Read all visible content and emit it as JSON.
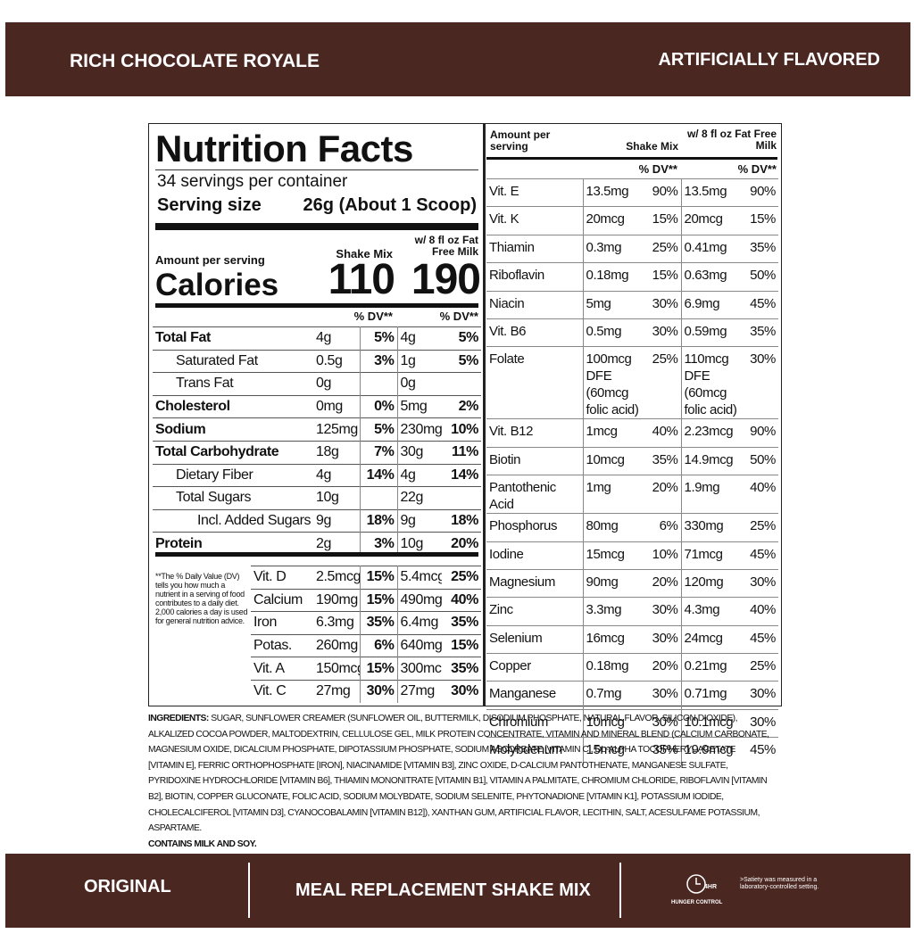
{
  "header": {
    "left": "RICH CHOCOLATE ROYALE",
    "right": "ARTIFICIALLY FLAVORED"
  },
  "facts": {
    "title": "Nutrition Facts",
    "servings": "34 servings per container",
    "serving_size_label": "Serving size",
    "serving_size": "26g (About 1 Scoop)",
    "amount_per_serving": "Amount per serving",
    "calories_label": "Calories",
    "col1": "Shake Mix",
    "col2": "w/ 8 fl oz Fat Free Milk",
    "calories": [
      "110",
      "190"
    ],
    "dv_header": "% DV**",
    "nutrients": [
      [
        "Total Fat",
        "4g",
        "5%",
        "4g",
        "5%"
      ],
      [
        "Saturated Fat",
        "0.5g",
        "3%",
        "1g",
        "5%"
      ],
      [
        "Trans Fat",
        "0g",
        null,
        "0g",
        null
      ],
      [
        "Cholesterol",
        "0mg",
        "0%",
        "5mg",
        "2%"
      ],
      [
        "Sodium",
        "125mg",
        "5%",
        "230mg",
        "10%"
      ],
      [
        "Total Carbohydrate",
        "18g",
        "7%",
        "30g",
        "11%"
      ],
      [
        "Dietary Fiber",
        "4g",
        "14%",
        "4g",
        "14%"
      ],
      [
        "Total Sugars",
        "10g",
        null,
        "22g",
        null
      ],
      [
        "Incl. Added Sugars",
        "9g",
        "18%",
        "9g",
        "18%"
      ],
      [
        "Protein",
        "2g",
        "3%",
        "10g",
        "20%"
      ]
    ],
    "footnote": "**The % Daily Value (DV) tells you how much a nutrient in a serving of food contributes to a daily diet. 2,000 calories a day is used for general nutrition advice.",
    "vitamins": [
      [
        "Vit. D",
        "2.5mcg",
        "15%",
        "5.4mcg",
        "25%"
      ],
      [
        "Calcium",
        "190mg",
        "15%",
        "490mg",
        "40%"
      ],
      [
        "Iron",
        "6.3mg",
        "35%",
        "6.4mg",
        "35%"
      ],
      [
        "Potas.",
        "260mg",
        "6%",
        "640mg",
        "15%"
      ],
      [
        "Vit. A",
        "150mcg",
        "15%",
        "300mcg",
        "35%"
      ],
      [
        "Vit. C",
        "27mg",
        "30%",
        "27mg",
        "30%"
      ]
    ]
  },
  "micros": {
    "amount_per_serving": "Amount per serving",
    "col1": "Shake Mix",
    "col2": "w/ 8 fl oz Fat Free Milk",
    "dv_header": "% DV**",
    "rows": [
      [
        "Vit. E",
        "13.5mg",
        "90%",
        "13.5mg",
        "90%"
      ],
      [
        "Vit. K",
        "20mcg",
        "15%",
        "20mcg",
        "15%"
      ],
      [
        "Thiamin",
        "0.3mg",
        "25%",
        "0.41mg",
        "35%"
      ],
      [
        "Riboflavin",
        "0.18mg",
        "15%",
        "0.63mg",
        "50%"
      ],
      [
        "Niacin",
        "5mg",
        "30%",
        "6.9mg",
        "45%"
      ],
      [
        "Vit. B6",
        "0.5mg",
        "30%",
        "0.59mg",
        "35%"
      ],
      [
        "Folate",
        "100mcg DFE (60mcg folic acid)",
        "25%",
        "110mcg DFE (60mcg folic acid)",
        "30%"
      ],
      [
        "Vit. B12",
        "1mcg",
        "40%",
        "2.23mcg",
        "90%"
      ],
      [
        "Biotin",
        "10mcg",
        "35%",
        "14.9mcg",
        "50%"
      ],
      [
        "Pantothenic Acid",
        "1mg",
        "20%",
        "1.9mg",
        "40%"
      ],
      [
        "Phosphorus",
        "80mg",
        "6%",
        "330mg",
        "25%"
      ],
      [
        "Iodine",
        "15mcg",
        "10%",
        "71mcg",
        "45%"
      ],
      [
        "Magnesium",
        "90mg",
        "20%",
        "120mg",
        "30%"
      ],
      [
        "Zinc",
        "3.3mg",
        "30%",
        "4.3mg",
        "40%"
      ],
      [
        "Selenium",
        "16mcg",
        "30%",
        "24mcg",
        "45%"
      ],
      [
        "Copper",
        "0.18mg",
        "20%",
        "0.21mg",
        "25%"
      ],
      [
        "Manganese",
        "0.7mg",
        "30%",
        "0.71mg",
        "30%"
      ],
      [
        "Chromium",
        "10mcg",
        "30%",
        "10.1mcg",
        "30%"
      ],
      [
        "Molybdenum",
        "15mcg",
        "35%",
        "19.9mcg",
        "45%"
      ]
    ]
  },
  "ingredients": {
    "label": "INGREDIENTS:",
    "text": "SUGAR, SUNFLOWER CREAMER (SUNFLOWER OIL, BUTTERMILK, DISODIUM PHOSPHATE, NATURAL FLAVOR, SILICON DIOXIDE), ALKALIZED COCOA POWDER, MALTODEXTRIN, CELLULOSE GEL, MILK PROTEIN CONCENTRATE, VITAMIN AND MINERAL BLEND (CALCIUM CARBONATE, MAGNESIUM OXIDE, DICALCIUM PHOSPHATE, DIPOTASSIUM PHOSPHATE, SODIUM ASCORBATE [VITAMIN C], DL-ALPHA TOCOPHERYL ACETATE [VITAMIN E], FERRIC ORTHOPHOSPHATE [IRON], NIACINAMIDE [VITAMIN B3], ZINC OXIDE, D-CALCIUM PANTOTHENATE, MANGANESE SULFATE, PYRIDOXINE HYDROCHLORIDE [VITAMIN B6], THIAMIN MONONITRATE [VITAMIN B1], VITAMIN A PALMITATE, CHROMIUM CHLORIDE, RIBOFLAVIN [VITAMIN B2], BIOTIN, COPPER GLUCONATE, FOLIC ACID, SODIUM MOLYBDATE, SODIUM SELENITE, PHYTONADIONE [VITAMIN K1], POTASSIUM IODIDE, CHOLECALCIFEROL [VITAMIN D3], CYANOCOBALAMIN [VITAMIN B12]), XANTHAN GUM, ARTIFICIAL FLAVOR, LECITHIN, SALT, ACESULFAME POTASSIUM, ASPARTAME.",
    "allergens": "CONTAINS MILK AND SOY."
  },
  "footer": {
    "left": "ORIGINAL",
    "center": "MEAL REPLACEMENT SHAKE MIX",
    "badge": "4HR",
    "badge_label": "HUNGER CONTROL",
    "note": ">Satiety was measured in a laboratory-controlled setting."
  }
}
